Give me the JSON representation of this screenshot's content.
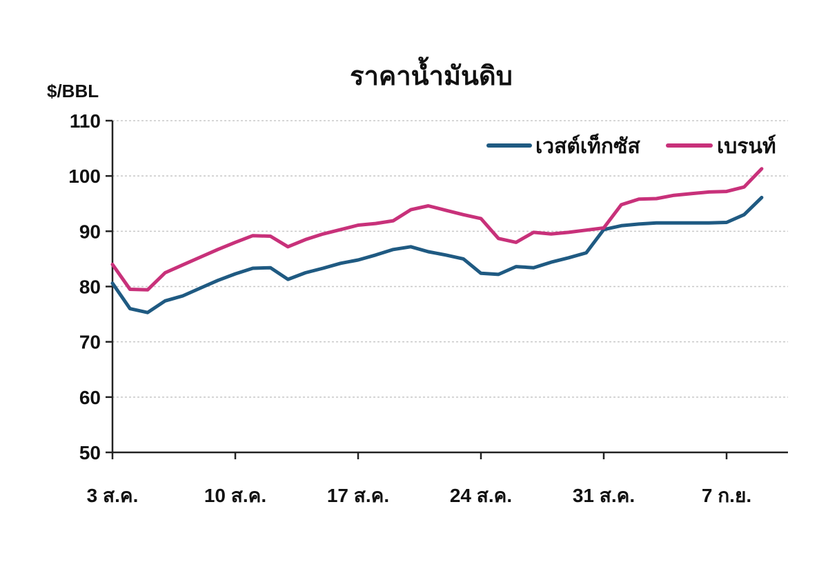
{
  "chart_data": {
    "type": "line",
    "title": "ราคาน้ำมันดิบ",
    "ylabel": "$/BBL",
    "ylim": [
      50,
      110
    ],
    "yticks": [
      50,
      60,
      70,
      80,
      90,
      100,
      110
    ],
    "grid": true,
    "legend_position": "top-right",
    "x_tick_labels": [
      "3 ส.ค.",
      "10 ส.ค.",
      "17 ส.ค.",
      "24 ส.ค.",
      "31 ส.ค.",
      "7 ก.ย."
    ],
    "x_tick_days": [
      0,
      7,
      14,
      21,
      28,
      35
    ],
    "x_range_days": [
      0,
      39
    ],
    "x_days": [
      0,
      1,
      2,
      3,
      4,
      5,
      6,
      7,
      8,
      9,
      10,
      11,
      12,
      13,
      14,
      15,
      16,
      17,
      18,
      19,
      20,
      21,
      22,
      23,
      24,
      25,
      26,
      27,
      28,
      29,
      30,
      31,
      32,
      33,
      34,
      35,
      36,
      37
    ],
    "series": [
      {
        "name": "เวสต์เท็กซัส",
        "color": "#1f5a82",
        "values": [
          80.6,
          76.0,
          75.3,
          77.4,
          78.3,
          79.7,
          81.1,
          82.3,
          83.3,
          83.4,
          81.3,
          82.5,
          83.3,
          84.2,
          84.8,
          85.7,
          86.7,
          87.2,
          86.3,
          85.7,
          85.0,
          82.4,
          82.2,
          83.6,
          83.4,
          84.4,
          85.2,
          86.1,
          90.3,
          91.0,
          91.3,
          91.5,
          91.5,
          91.5,
          91.5,
          91.6,
          93.0,
          96.1
        ]
      },
      {
        "name": "เบรนท์",
        "color": "#c8317a",
        "values": [
          84.0,
          79.5,
          79.4,
          82.5,
          83.9,
          85.3,
          86.7,
          88.0,
          89.2,
          89.1,
          87.2,
          88.5,
          89.5,
          90.3,
          91.1,
          91.4,
          91.9,
          93.9,
          94.6,
          93.8,
          93.0,
          92.3,
          88.7,
          88.0,
          89.8,
          89.5,
          89.8,
          90.2,
          90.6,
          94.8,
          95.8,
          95.9,
          96.5,
          96.8,
          97.1,
          97.2,
          98.0,
          101.3
        ]
      }
    ]
  }
}
